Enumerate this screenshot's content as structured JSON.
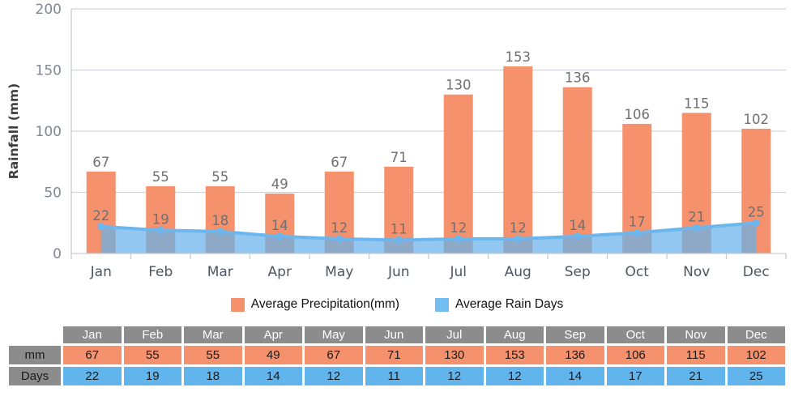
{
  "chart_data": {
    "type": "bar",
    "title": "",
    "categories": [
      "Jan",
      "Feb",
      "Mar",
      "Apr",
      "May",
      "Jun",
      "Jul",
      "Aug",
      "Sep",
      "Oct",
      "Nov",
      "Dec"
    ],
    "series": [
      {
        "name": "Average Precipitation(mm)",
        "type": "bar",
        "color": "#F5916C",
        "values": [
          67,
          55,
          55,
          49,
          67,
          71,
          130,
          153,
          136,
          106,
          115,
          102
        ]
      },
      {
        "name": "Average Rain Days",
        "type": "area",
        "line_color": "#6CB6EE",
        "fill_color": "rgba(102,178,236,0.72)",
        "marker": "circle",
        "values": [
          22,
          19,
          18,
          14,
          12,
          11,
          12,
          12,
          14,
          17,
          21,
          25
        ]
      }
    ],
    "xlabel": "",
    "ylabel": "Rainfall (mm)",
    "ylim": [
      0,
      200
    ],
    "yticks": [
      0,
      50,
      100,
      150,
      200
    ],
    "grid": true,
    "legend_position": "bottom",
    "data_labels": true
  },
  "legend": {
    "items": [
      {
        "label": "Average Precipitation(mm)",
        "color": "#F5916C"
      },
      {
        "label": "Average Rain Days",
        "color": "#72BEF0"
      }
    ]
  },
  "table": {
    "corner_label": "",
    "header_bg": "#8C8C8C",
    "months": [
      "Jan",
      "Feb",
      "Mar",
      "Apr",
      "May",
      "Jun",
      "Jul",
      "Aug",
      "Sep",
      "Oct",
      "Nov",
      "Dec"
    ],
    "rows": [
      {
        "label": "mm",
        "bg": "#F5916C",
        "values": [
          "67",
          "55",
          "55",
          "49",
          "67",
          "71",
          "130",
          "153",
          "136",
          "106",
          "115",
          "102"
        ]
      },
      {
        "label": "Days",
        "bg": "#62B5EC",
        "values": [
          "22",
          "19",
          "18",
          "14",
          "12",
          "11",
          "12",
          "12",
          "14",
          "17",
          "21",
          "25"
        ]
      }
    ]
  },
  "style": {
    "grid_color": "#CFD4DA",
    "axis_color": "#C6CCD4",
    "tick_label_color": "#7D8894",
    "month_label_color": "#4C5662",
    "data_label_color": "#707070",
    "ylabel_color": "#3F3F3F"
  }
}
